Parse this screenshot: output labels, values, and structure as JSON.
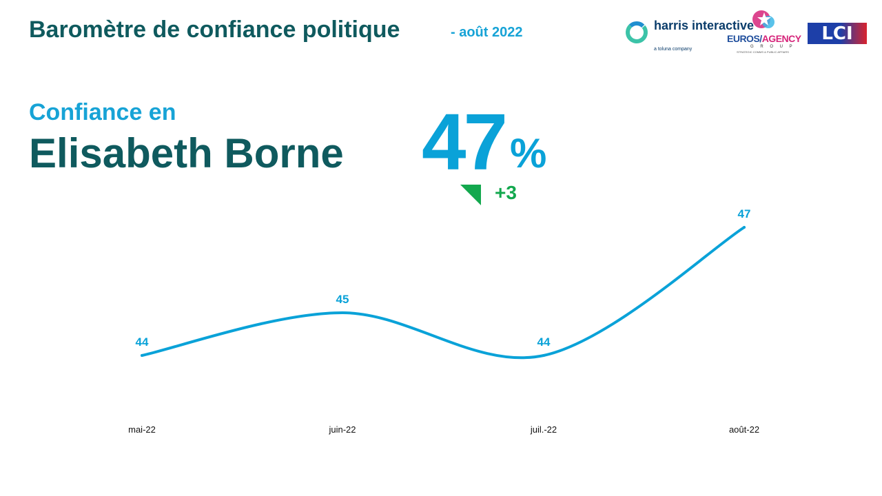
{
  "header": {
    "title": "Baromètre de confiance politique",
    "subtitle": "- août 2022"
  },
  "logos": {
    "harris": {
      "name": "harris interactive",
      "tagline": "a toluna company",
      "icon": "harris-ring-logo"
    },
    "euros": {
      "name_left": "EUROS/",
      "name_right": "AGENCY",
      "group": "G R O U P",
      "tagline": "STRATEGIC COMMS & PUBLIC AFFAIRS"
    },
    "lci": {
      "name": "LCI"
    }
  },
  "headline": {
    "prefix": "Confiance en",
    "person": "Elisabeth Borne",
    "value": "47",
    "unit": "%",
    "delta": "+3",
    "trend_icon": "green-triangle-indicator",
    "trend_color": "#13a84e"
  },
  "colors": {
    "accent": "#17a3d6",
    "title": "#0f5a5e",
    "line": "#0aa2d8",
    "positive": "#13a84e"
  },
  "chart_data": {
    "type": "line",
    "categories": [
      "mai-22",
      "juin-22",
      "juil.-22",
      "août-22"
    ],
    "series": [
      {
        "values": [
          44,
          45,
          44,
          47
        ]
      }
    ],
    "data_labels": [
      "44",
      "45",
      "44",
      "47"
    ],
    "line_style": "smooth",
    "grid": false,
    "legend": "none"
  }
}
